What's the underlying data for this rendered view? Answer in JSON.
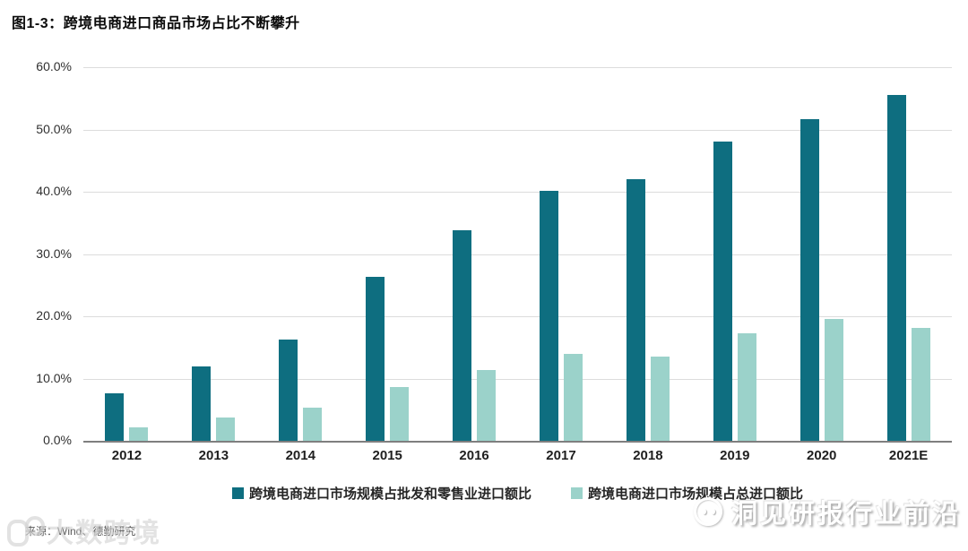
{
  "title": "图1-3：跨境电商进口商品市场占比不断攀升",
  "source": "来源：Wind、德勤研究",
  "watermarks": {
    "left_text": "大数跨境",
    "right_text": "洞见研报行业前沿"
  },
  "colors": {
    "series1": "#0e6e80",
    "series2": "#9bd2ca",
    "grid": "#dcdcdc",
    "axis": "#7f7f7f"
  },
  "chart_data": {
    "type": "bar",
    "title": "图1-3：跨境电商进口商品市场占比不断攀升",
    "categories": [
      "2012",
      "2013",
      "2014",
      "2015",
      "2016",
      "2017",
      "2018",
      "2019",
      "2020",
      "2021E"
    ],
    "series": [
      {
        "name": "跨境电商进口市场规模占批发和零售业进口额比",
        "color": "#0e6e80",
        "values": [
          7.7,
          12.0,
          16.3,
          26.4,
          33.8,
          40.2,
          42.0,
          48.0,
          51.6,
          55.6
        ]
      },
      {
        "name": "跨境电商进口市场规模占总进口额比",
        "color": "#9bd2ca",
        "values": [
          2.1,
          3.8,
          5.3,
          8.6,
          11.3,
          14.0,
          13.5,
          17.2,
          19.5,
          18.2
        ]
      }
    ],
    "xlabel": "",
    "ylabel": "",
    "ylim": [
      0,
      60
    ],
    "ytick_step": 10,
    "ytick_labels": [
      "0.0%",
      "10.0%",
      "20.0%",
      "30.0%",
      "40.0%",
      "50.0%",
      "60.0%"
    ],
    "grid": "horizontal",
    "legend_position": "bottom"
  }
}
